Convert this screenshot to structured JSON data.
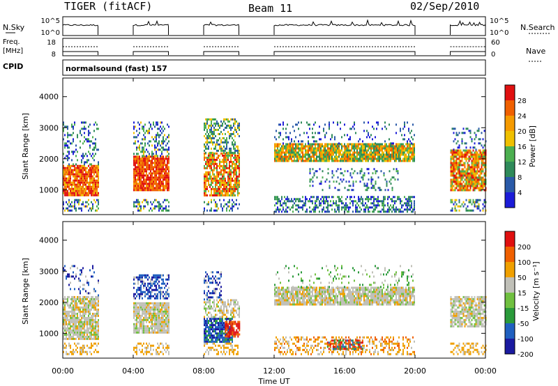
{
  "header": {
    "title": "TIGER (fitACF)",
    "beam": "Beam 11",
    "date": "02/Sep/2010"
  },
  "top_panels": {
    "nsky_label": "N.Sky",
    "nsky_ticks": [
      "10^5",
      "10^0"
    ],
    "nsearch_label": "N.Search",
    "nsearch_ticks": [
      "10^5",
      "10^0"
    ],
    "freq_label": "Freq.",
    "freq_unit": "[MHz]",
    "freq_ticks": [
      "18",
      "8"
    ],
    "nave_label": "Nave",
    "nave_ticks": [
      "60",
      "0"
    ],
    "cpid_label": "CPID",
    "cpid_value": "normalsound (fast) 157"
  },
  "chart_data": [
    {
      "type": "heatmap",
      "panel": "power",
      "ylabel": "Slant Range [km]",
      "ylim": [
        200,
        4600
      ],
      "yticks": [
        "1000",
        "2000",
        "3000",
        "4000"
      ],
      "xlim": [
        0,
        24
      ],
      "xticks": [
        "00:00",
        "04:00",
        "08:00",
        "12:00",
        "16:00",
        "20:00",
        "00:00"
      ],
      "colorbar_label": "Power [dB]",
      "colorbar_ticks": [
        "4",
        "8",
        "12",
        "16",
        "20",
        "24",
        "28"
      ],
      "colorbar_colors": [
        "#1c1cd8",
        "#2a5aa8",
        "#2f8a5a",
        "#4caf50",
        "#f0c000",
        "#f59a00",
        "#f06000",
        "#e01010"
      ],
      "data_intervals_ut": [
        [
          0,
          2
        ],
        [
          4,
          6
        ],
        [
          8,
          10
        ],
        [
          12,
          20
        ],
        [
          22,
          24
        ]
      ]
    },
    {
      "type": "heatmap",
      "panel": "velocity",
      "ylabel": "Slant Range [km]",
      "ylim": [
        200,
        4600
      ],
      "yticks": [
        "1000",
        "2000",
        "3000",
        "4000"
      ],
      "xlim": [
        0,
        24
      ],
      "xticks": [
        "00:00",
        "04:00",
        "08:00",
        "12:00",
        "16:00",
        "20:00",
        "00:00"
      ],
      "xlabel": "Time UT",
      "colorbar_label": "Velocity [m s⁻¹]",
      "colorbar_ticks": [
        "200",
        "100",
        "50",
        "15",
        "-15",
        "-50",
        "-100",
        "-200"
      ],
      "colorbar_colors": [
        "#1a1aa0",
        "#2060c0",
        "#2a9a3a",
        "#70c040",
        "#c0c0b8",
        "#f0a000",
        "#f06000",
        "#e01010"
      ],
      "data_intervals_ut": [
        [
          0,
          2
        ],
        [
          4,
          6
        ],
        [
          8,
          10
        ],
        [
          12,
          20
        ],
        [
          22,
          24
        ]
      ]
    }
  ]
}
